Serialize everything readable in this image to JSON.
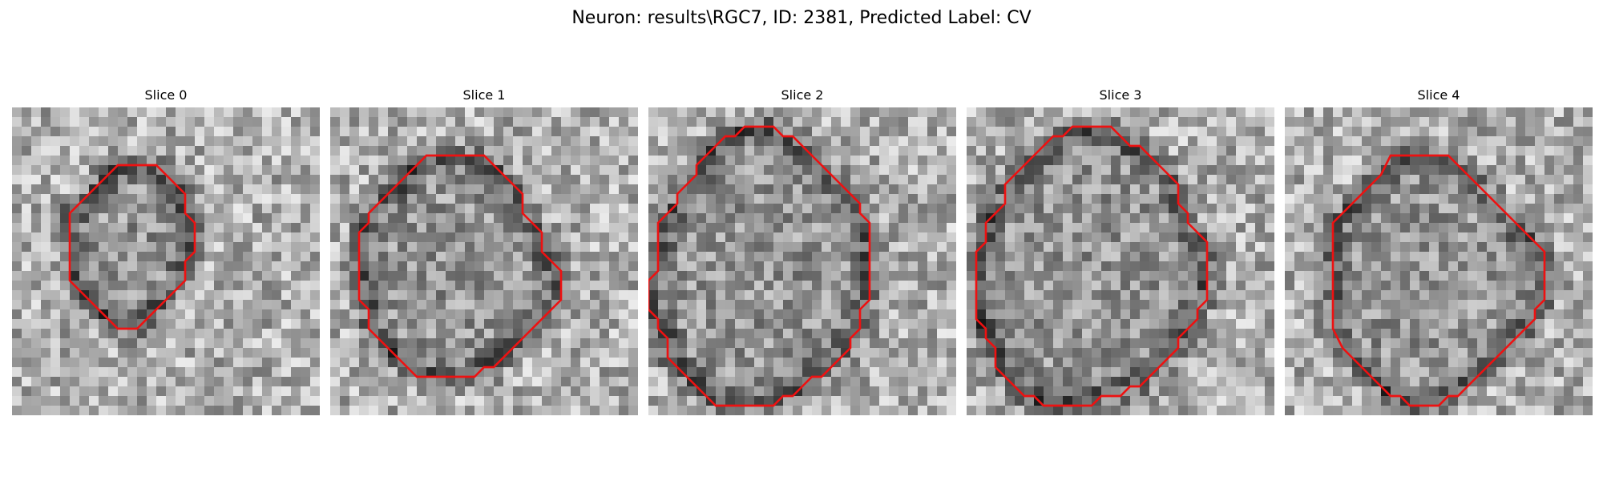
{
  "title": "Neuron: results\\RGC7, ID: 2381, Predicted Label: CV",
  "colors": {
    "contour": "#ee1111",
    "background": "#ffffff"
  },
  "slices": [
    {
      "label": "Slice 0",
      "contour": [
        [
          12,
          6
        ],
        [
          15,
          6
        ],
        [
          17,
          8
        ],
        [
          18,
          9
        ],
        [
          18,
          11
        ],
        [
          19,
          12
        ],
        [
          19,
          15
        ],
        [
          18,
          16
        ],
        [
          18,
          18
        ],
        [
          17,
          19
        ],
        [
          16,
          20
        ],
        [
          15,
          21
        ],
        [
          13,
          23
        ],
        [
          11,
          23
        ],
        [
          10,
          22
        ],
        [
          9,
          21
        ],
        [
          8,
          20
        ],
        [
          7,
          19
        ],
        [
          6,
          18
        ],
        [
          6,
          11
        ],
        [
          7,
          10
        ],
        [
          8,
          9
        ],
        [
          9,
          8
        ],
        [
          11,
          6
        ]
      ]
    },
    {
      "label": "Slice 1",
      "contour": [
        [
          10,
          5
        ],
        [
          16,
          5
        ],
        [
          19,
          8
        ],
        [
          20,
          9
        ],
        [
          20,
          11
        ],
        [
          21,
          12
        ],
        [
          22,
          13
        ],
        [
          22,
          15
        ],
        [
          23,
          16
        ],
        [
          24,
          17
        ],
        [
          24,
          20
        ],
        [
          23,
          21
        ],
        [
          22,
          22
        ],
        [
          21,
          23
        ],
        [
          20,
          24
        ],
        [
          19,
          25
        ],
        [
          18,
          26
        ],
        [
          17,
          27
        ],
        [
          16,
          27
        ],
        [
          15,
          28
        ],
        [
          9,
          28
        ],
        [
          8,
          27
        ],
        [
          7,
          26
        ],
        [
          6,
          25
        ],
        [
          5,
          24
        ],
        [
          4,
          23
        ],
        [
          4,
          21
        ],
        [
          3,
          20
        ],
        [
          3,
          13
        ],
        [
          4,
          12
        ],
        [
          4,
          11
        ],
        [
          5,
          10
        ],
        [
          6,
          9
        ],
        [
          7,
          8
        ],
        [
          8,
          7
        ]
      ]
    },
    {
      "label": "Slice 2",
      "contour": [
        [
          10,
          2
        ],
        [
          13,
          2
        ],
        [
          14,
          3
        ],
        [
          15,
          3
        ],
        [
          16,
          4
        ],
        [
          17,
          5
        ],
        [
          18,
          6
        ],
        [
          19,
          7
        ],
        [
          20,
          8
        ],
        [
          21,
          9
        ],
        [
          22,
          10
        ],
        [
          22,
          11
        ],
        [
          23,
          12
        ],
        [
          23,
          20
        ],
        [
          22,
          21
        ],
        [
          22,
          23
        ],
        [
          21,
          24
        ],
        [
          21,
          25
        ],
        [
          20,
          26
        ],
        [
          19,
          27
        ],
        [
          18,
          28
        ],
        [
          17,
          28
        ],
        [
          16,
          29
        ],
        [
          15,
          30
        ],
        [
          14,
          30
        ],
        [
          13,
          31
        ],
        [
          7,
          31
        ],
        [
          6,
          30
        ],
        [
          5,
          29
        ],
        [
          4,
          28
        ],
        [
          3,
          27
        ],
        [
          2,
          26
        ],
        [
          2,
          24
        ],
        [
          1,
          23
        ],
        [
          1,
          22
        ],
        [
          0,
          21
        ],
        [
          0,
          18
        ],
        [
          1,
          17
        ],
        [
          1,
          12
        ],
        [
          2,
          11
        ],
        [
          3,
          10
        ],
        [
          3,
          9
        ],
        [
          4,
          8
        ],
        [
          5,
          7
        ],
        [
          5,
          6
        ],
        [
          6,
          5
        ],
        [
          7,
          4
        ],
        [
          8,
          3
        ],
        [
          9,
          3
        ]
      ]
    },
    {
      "label": "Slice 3",
      "contour": [
        [
          11,
          2
        ],
        [
          15,
          2
        ],
        [
          16,
          3
        ],
        [
          17,
          4
        ],
        [
          18,
          4
        ],
        [
          19,
          5
        ],
        [
          20,
          6
        ],
        [
          21,
          7
        ],
        [
          22,
          8
        ],
        [
          22,
          10
        ],
        [
          23,
          11
        ],
        [
          23,
          12
        ],
        [
          24,
          13
        ],
        [
          25,
          14
        ],
        [
          25,
          20
        ],
        [
          24,
          21
        ],
        [
          24,
          22
        ],
        [
          23,
          23
        ],
        [
          22,
          24
        ],
        [
          22,
          25
        ],
        [
          21,
          26
        ],
        [
          20,
          27
        ],
        [
          19,
          28
        ],
        [
          18,
          29
        ],
        [
          17,
          29
        ],
        [
          16,
          30
        ],
        [
          14,
          30
        ],
        [
          13,
          31
        ],
        [
          8,
          31
        ],
        [
          7,
          30
        ],
        [
          6,
          30
        ],
        [
          5,
          29
        ],
        [
          4,
          28
        ],
        [
          3,
          27
        ],
        [
          3,
          25
        ],
        [
          2,
          24
        ],
        [
          2,
          23
        ],
        [
          1,
          22
        ],
        [
          1,
          15
        ],
        [
          2,
          14
        ],
        [
          2,
          12
        ],
        [
          3,
          11
        ],
        [
          4,
          10
        ],
        [
          4,
          8
        ],
        [
          5,
          7
        ],
        [
          6,
          6
        ],
        [
          7,
          5
        ],
        [
          8,
          4
        ],
        [
          9,
          3
        ],
        [
          10,
          3
        ]
      ]
    },
    {
      "label": "Slice 4",
      "contour": [
        [
          11,
          5
        ],
        [
          17,
          5
        ],
        [
          18,
          6
        ],
        [
          19,
          7
        ],
        [
          20,
          8
        ],
        [
          21,
          9
        ],
        [
          22,
          10
        ],
        [
          23,
          11
        ],
        [
          24,
          12
        ],
        [
          25,
          13
        ],
        [
          26,
          14
        ],
        [
          27,
          15
        ],
        [
          27,
          20
        ],
        [
          26,
          21
        ],
        [
          26,
          22
        ],
        [
          25,
          23
        ],
        [
          24,
          24
        ],
        [
          23,
          25
        ],
        [
          22,
          26
        ],
        [
          21,
          27
        ],
        [
          20,
          28
        ],
        [
          19,
          29
        ],
        [
          18,
          30
        ],
        [
          17,
          30
        ],
        [
          16,
          31
        ],
        [
          13,
          31
        ],
        [
          12,
          30
        ],
        [
          11,
          30
        ],
        [
          10,
          29
        ],
        [
          9,
          28
        ],
        [
          8,
          27
        ],
        [
          7,
          26
        ],
        [
          6,
          25
        ],
        [
          5,
          23
        ],
        [
          5,
          12
        ],
        [
          6,
          11
        ],
        [
          7,
          10
        ],
        [
          8,
          9
        ],
        [
          9,
          8
        ],
        [
          10,
          7
        ]
      ]
    }
  ]
}
